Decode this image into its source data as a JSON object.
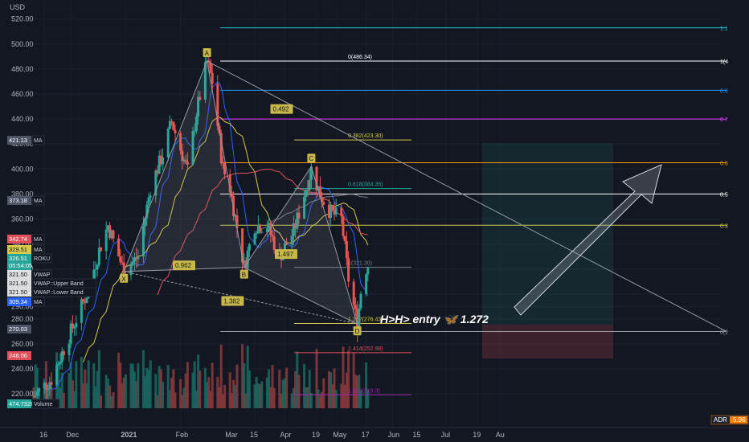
{
  "chart_data": {
    "type": "candlestick",
    "currency": "USD",
    "y_ticks": [
      "520.00",
      "500.00",
      "480.00",
      "460.00",
      "440.00",
      "420.00",
      "400.00",
      "380.00",
      "360.00",
      "340.00",
      "320.00",
      "300.00",
      "290.00",
      "280.00",
      "260.00",
      "240.00",
      "220.00"
    ],
    "x_ticks": [
      "16",
      "Dec",
      "2021",
      "Feb",
      "Mar",
      "15",
      "Apr",
      "19",
      "May",
      "17",
      "Jun",
      "15",
      "Jul",
      "19",
      "Au"
    ],
    "price_tags": [
      {
        "text": "421.13",
        "color": "#4d5466",
        "label": "MA"
      },
      {
        "text": "373.18",
        "color": "#4d5466",
        "label": "MA"
      },
      {
        "text": "342.74",
        "color": "#e0505a",
        "label": "MA"
      },
      {
        "text": "329.51",
        "color": "#d6c94b",
        "label": "MA"
      },
      {
        "text": "326.51",
        "color": "#26a69a",
        "label": "ROKU"
      },
      {
        "text": "05:54:05",
        "color": "#26a69a",
        "label": ""
      },
      {
        "text": "321.50",
        "color": "#ffffff",
        "label": "VWAP"
      },
      {
        "text": "321.50",
        "color": "#ffffff",
        "label": "VWAP::Upper Band"
      },
      {
        "text": "321.50",
        "color": "#ffffff",
        "label": "VWAP::Lower Band"
      },
      {
        "text": "309.34",
        "color": "#2962ff",
        "label": "MA"
      },
      {
        "text": "270.03",
        "color": "#4d5466",
        "label": ""
      },
      {
        "text": "248.06",
        "color": "#e0505a",
        "label": ""
      },
      {
        "text": "474.732K",
        "color": "#26a69a",
        "label": "Volume"
      }
    ],
    "pattern_points": [
      {
        "name": "X",
        "date": "2020-12-31",
        "price": 318
      },
      {
        "name": "A",
        "date": "2021-02-16",
        "price": 486.34
      },
      {
        "name": "B",
        "date": "2021-03-09",
        "price": 321.3
      },
      {
        "name": "C",
        "date": "2021-04-16",
        "price": 402
      },
      {
        "name": "D",
        "date": "2021-05-12",
        "price": 276
      }
    ],
    "pattern_ratios": [
      "0.962",
      "0.492",
      "1.497",
      "1.382"
    ],
    "fib_levels": [
      {
        "label": "0(486.34)",
        "price": 486.34,
        "color": "#ffffff",
        "right": "1(4"
      },
      {
        "label": "0.382(423.30)",
        "price": 423.3,
        "color": "#d6c94b",
        "right": ""
      },
      {
        "label": "0.618(384.35)",
        "price": 384.35,
        "color": "#26a69a",
        "right": ""
      },
      {
        "label": "1(321.30)",
        "price": 321.3,
        "color": "#787b86",
        "right": ""
      },
      {
        "label": "1.272(276.43)",
        "price": 276.43,
        "color": "#d6c94b",
        "right": ""
      },
      {
        "label": "1.414(252.98)",
        "price": 252.98,
        "color": "#e0505a",
        "right": ""
      },
      {
        "label": "1.618(219.3)",
        "price": 219.3,
        "color": "#9c27b0",
        "right": ""
      }
    ],
    "right_fib_labels": [
      {
        "text": "1.1",
        "price": 513,
        "color": "#26c6da"
      },
      {
        "text": "0.8",
        "price": 463,
        "color": "#2196f3"
      },
      {
        "text": "0.7",
        "price": 440,
        "color": "#e040fb"
      },
      {
        "text": "0.6",
        "price": 405,
        "color": "#ff9800"
      },
      {
        "text": "0.5",
        "price": 380,
        "color": "#ffffff"
      },
      {
        "text": "0.3",
        "price": 355,
        "color": "#d6c94b"
      },
      {
        "text": "0(2",
        "price": 270,
        "color": "#9598a1"
      }
    ],
    "annotation": "H>H> entry 🦋 1.272",
    "bottom_indicator": {
      "label": "ADR",
      "value": "5.96"
    },
    "title": "",
    "xlabel": "",
    "ylabel": ""
  }
}
